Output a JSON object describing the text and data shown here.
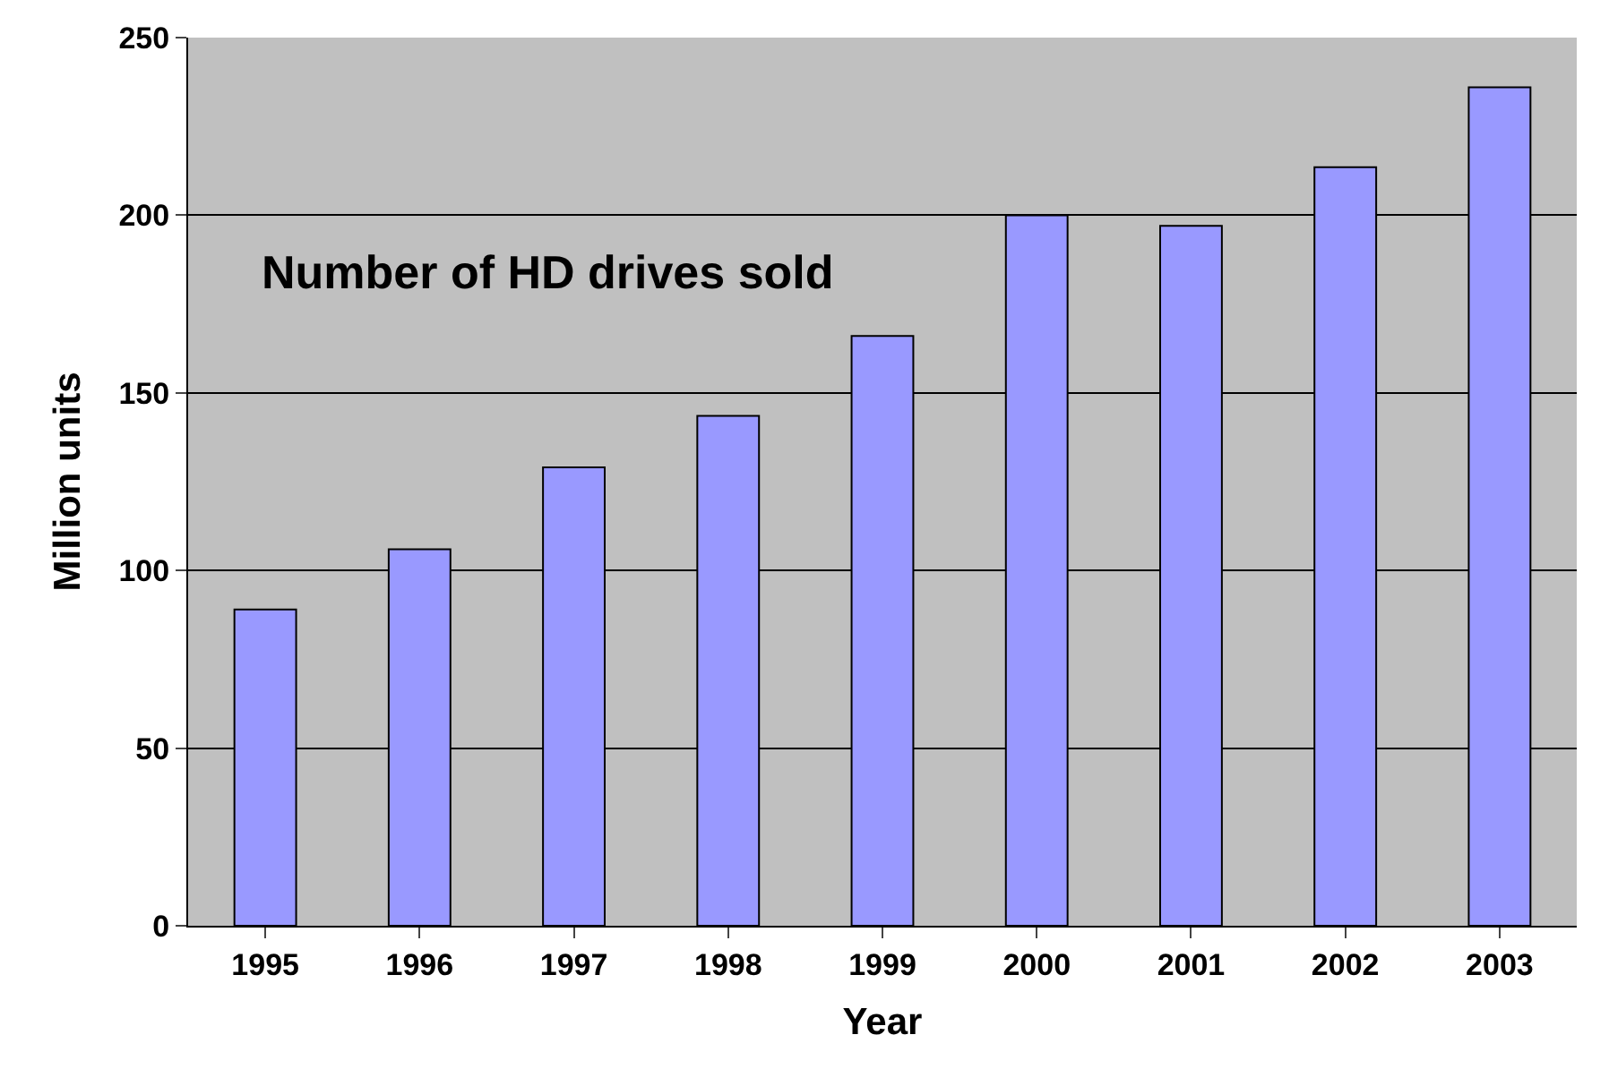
{
  "chart_data": {
    "type": "bar",
    "categories": [
      "1995",
      "1996",
      "1997",
      "1998",
      "1999",
      "2000",
      "2001",
      "2002",
      "2003"
    ],
    "values": [
      89,
      106,
      129,
      143.5,
      166,
      200,
      197,
      213.5,
      236
    ],
    "color": "#9999ff",
    "xlabel": "Year",
    "ylabel": "Million units",
    "annotations": [
      "Number of HD drives sold"
    ],
    "ylim": [
      0,
      250
    ],
    "yticks": [
      0,
      50,
      100,
      150,
      200,
      250
    ],
    "grid": "y"
  }
}
